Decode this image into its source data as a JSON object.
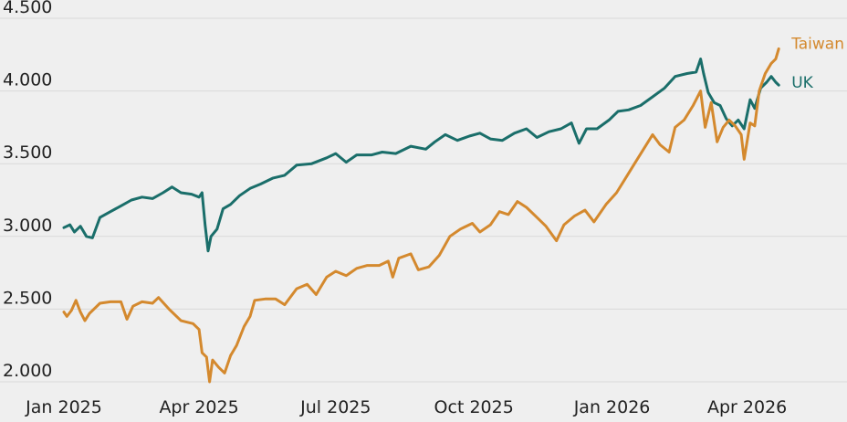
{
  "chart_data": {
    "type": "line",
    "title": "",
    "xlabel": "",
    "ylabel": "",
    "ylim": [
      2000,
      4500
    ],
    "yticks": [
      2000,
      2500,
      3000,
      3500,
      4000,
      4500
    ],
    "ytick_labels": [
      "2.000",
      "2.500",
      "3.000",
      "3.500",
      "4.000",
      "4.500"
    ],
    "xlim": [
      "2025-01-01",
      "2026-05-01"
    ],
    "xticks": [
      "2025-01-01",
      "2025-04-01",
      "2025-07-01",
      "2025-10-01",
      "2026-01-01",
      "2026-04-01"
    ],
    "xtick_labels": [
      "Jan 2025",
      "Apr 2025",
      "Jul 2025",
      "Oct 2025",
      "Jan 2026",
      "Apr 2026"
    ],
    "grid": true,
    "legend": "inline labels at line ends",
    "series": [
      {
        "name": "UK",
        "color": "#1a6e6a",
        "points": [
          [
            "2025-01-01",
            3060
          ],
          [
            "2025-01-05",
            3080
          ],
          [
            "2025-01-08",
            3030
          ],
          [
            "2025-01-12",
            3070
          ],
          [
            "2025-01-16",
            3000
          ],
          [
            "2025-01-20",
            2990
          ],
          [
            "2025-01-25",
            3130
          ],
          [
            "2025-02-01",
            3170
          ],
          [
            "2025-02-08",
            3210
          ],
          [
            "2025-02-15",
            3250
          ],
          [
            "2025-02-22",
            3270
          ],
          [
            "2025-03-01",
            3260
          ],
          [
            "2025-03-08",
            3300
          ],
          [
            "2025-03-14",
            3340
          ],
          [
            "2025-03-20",
            3300
          ],
          [
            "2025-03-27",
            3290
          ],
          [
            "2025-04-01",
            3270
          ],
          [
            "2025-04-03",
            3300
          ],
          [
            "2025-04-05",
            3080
          ],
          [
            "2025-04-07",
            2900
          ],
          [
            "2025-04-09",
            3000
          ],
          [
            "2025-04-13",
            3050
          ],
          [
            "2025-04-17",
            3190
          ],
          [
            "2025-04-22",
            3220
          ],
          [
            "2025-04-28",
            3280
          ],
          [
            "2025-05-05",
            3330
          ],
          [
            "2025-05-12",
            3360
          ],
          [
            "2025-05-20",
            3400
          ],
          [
            "2025-05-28",
            3420
          ],
          [
            "2025-06-05",
            3490
          ],
          [
            "2025-06-15",
            3500
          ],
          [
            "2025-06-25",
            3540
          ],
          [
            "2025-07-01",
            3570
          ],
          [
            "2025-07-08",
            3510
          ],
          [
            "2025-07-15",
            3560
          ],
          [
            "2025-07-25",
            3560
          ],
          [
            "2025-08-01",
            3580
          ],
          [
            "2025-08-10",
            3570
          ],
          [
            "2025-08-20",
            3620
          ],
          [
            "2025-08-30",
            3600
          ],
          [
            "2025-09-05",
            3650
          ],
          [
            "2025-09-12",
            3700
          ],
          [
            "2025-09-20",
            3660
          ],
          [
            "2025-09-28",
            3690
          ],
          [
            "2025-10-05",
            3710
          ],
          [
            "2025-10-12",
            3670
          ],
          [
            "2025-10-20",
            3660
          ],
          [
            "2025-10-28",
            3710
          ],
          [
            "2025-11-05",
            3740
          ],
          [
            "2025-11-12",
            3680
          ],
          [
            "2025-11-20",
            3720
          ],
          [
            "2025-11-28",
            3740
          ],
          [
            "2025-12-05",
            3780
          ],
          [
            "2025-12-10",
            3640
          ],
          [
            "2025-12-15",
            3740
          ],
          [
            "2025-12-22",
            3740
          ],
          [
            "2025-12-30",
            3800
          ],
          [
            "2026-01-05",
            3860
          ],
          [
            "2026-01-12",
            3870
          ],
          [
            "2026-01-20",
            3900
          ],
          [
            "2026-01-28",
            3960
          ],
          [
            "2026-02-05",
            4020
          ],
          [
            "2026-02-12",
            4100
          ],
          [
            "2026-02-20",
            4120
          ],
          [
            "2026-02-26",
            4130
          ],
          [
            "2026-03-01",
            4220
          ],
          [
            "2026-03-03",
            4120
          ],
          [
            "2026-03-06",
            3990
          ],
          [
            "2026-03-10",
            3920
          ],
          [
            "2026-03-14",
            3900
          ],
          [
            "2026-03-18",
            3810
          ],
          [
            "2026-03-22",
            3760
          ],
          [
            "2026-03-26",
            3800
          ],
          [
            "2026-03-30",
            3740
          ],
          [
            "2026-04-03",
            3940
          ],
          [
            "2026-04-06",
            3880
          ],
          [
            "2026-04-10",
            4020
          ],
          [
            "2026-04-14",
            4060
          ],
          [
            "2026-04-17",
            4100
          ],
          [
            "2026-04-20",
            4060
          ],
          [
            "2026-04-22",
            4040
          ]
        ]
      },
      {
        "name": "Taiwan",
        "color": "#d4892e",
        "points": [
          [
            "2025-01-01",
            2480
          ],
          [
            "2025-01-03",
            2450
          ],
          [
            "2025-01-06",
            2490
          ],
          [
            "2025-01-09",
            2560
          ],
          [
            "2025-01-12",
            2480
          ],
          [
            "2025-01-15",
            2420
          ],
          [
            "2025-01-18",
            2470
          ],
          [
            "2025-01-25",
            2540
          ],
          [
            "2025-02-01",
            2550
          ],
          [
            "2025-02-08",
            2550
          ],
          [
            "2025-02-12",
            2430
          ],
          [
            "2025-02-16",
            2520
          ],
          [
            "2025-02-22",
            2550
          ],
          [
            "2025-03-01",
            2540
          ],
          [
            "2025-03-05",
            2580
          ],
          [
            "2025-03-12",
            2500
          ],
          [
            "2025-03-20",
            2420
          ],
          [
            "2025-03-28",
            2400
          ],
          [
            "2025-04-01",
            2360
          ],
          [
            "2025-04-03",
            2200
          ],
          [
            "2025-04-06",
            2170
          ],
          [
            "2025-04-08",
            2000
          ],
          [
            "2025-04-10",
            2150
          ],
          [
            "2025-04-14",
            2100
          ],
          [
            "2025-04-18",
            2060
          ],
          [
            "2025-04-22",
            2180
          ],
          [
            "2025-04-26",
            2250
          ],
          [
            "2025-05-01",
            2380
          ],
          [
            "2025-05-05",
            2450
          ],
          [
            "2025-05-08",
            2560
          ],
          [
            "2025-05-15",
            2570
          ],
          [
            "2025-05-22",
            2570
          ],
          [
            "2025-05-28",
            2530
          ],
          [
            "2025-06-05",
            2640
          ],
          [
            "2025-06-12",
            2670
          ],
          [
            "2025-06-18",
            2600
          ],
          [
            "2025-06-25",
            2720
          ],
          [
            "2025-07-01",
            2760
          ],
          [
            "2025-07-08",
            2730
          ],
          [
            "2025-07-15",
            2780
          ],
          [
            "2025-07-22",
            2800
          ],
          [
            "2025-07-30",
            2800
          ],
          [
            "2025-08-05",
            2830
          ],
          [
            "2025-08-08",
            2720
          ],
          [
            "2025-08-12",
            2850
          ],
          [
            "2025-08-20",
            2880
          ],
          [
            "2025-08-25",
            2770
          ],
          [
            "2025-09-01",
            2790
          ],
          [
            "2025-09-08",
            2870
          ],
          [
            "2025-09-15",
            3000
          ],
          [
            "2025-09-22",
            3050
          ],
          [
            "2025-09-30",
            3090
          ],
          [
            "2025-10-05",
            3030
          ],
          [
            "2025-10-12",
            3080
          ],
          [
            "2025-10-18",
            3170
          ],
          [
            "2025-10-24",
            3150
          ],
          [
            "2025-10-30",
            3240
          ],
          [
            "2025-11-05",
            3200
          ],
          [
            "2025-11-12",
            3130
          ],
          [
            "2025-11-18",
            3070
          ],
          [
            "2025-11-25",
            2970
          ],
          [
            "2025-11-30",
            3080
          ],
          [
            "2025-12-07",
            3140
          ],
          [
            "2025-12-14",
            3180
          ],
          [
            "2025-12-20",
            3100
          ],
          [
            "2025-12-28",
            3220
          ],
          [
            "2026-01-04",
            3300
          ],
          [
            "2026-01-10",
            3400
          ],
          [
            "2026-01-16",
            3500
          ],
          [
            "2026-01-22",
            3600
          ],
          [
            "2026-01-28",
            3700
          ],
          [
            "2026-02-02",
            3630
          ],
          [
            "2026-02-08",
            3580
          ],
          [
            "2026-02-12",
            3750
          ],
          [
            "2026-02-18",
            3800
          ],
          [
            "2026-02-24",
            3900
          ],
          [
            "2026-03-01",
            4000
          ],
          [
            "2026-03-04",
            3750
          ],
          [
            "2026-03-08",
            3920
          ],
          [
            "2026-03-12",
            3650
          ],
          [
            "2026-03-16",
            3750
          ],
          [
            "2026-03-20",
            3800
          ],
          [
            "2026-03-24",
            3760
          ],
          [
            "2026-03-28",
            3700
          ],
          [
            "2026-03-30",
            3530
          ],
          [
            "2026-04-03",
            3780
          ],
          [
            "2026-04-06",
            3760
          ],
          [
            "2026-04-09",
            4000
          ],
          [
            "2026-04-13",
            4120
          ],
          [
            "2026-04-17",
            4190
          ],
          [
            "2026-04-20",
            4220
          ],
          [
            "2026-04-22",
            4290
          ]
        ]
      }
    ]
  }
}
